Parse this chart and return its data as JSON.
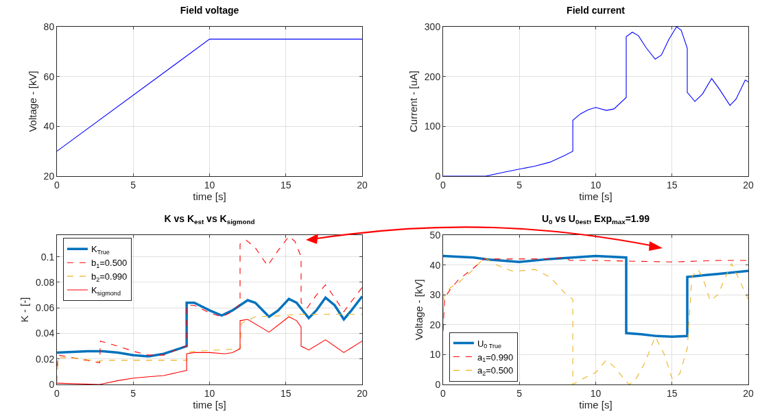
{
  "chart_data": [
    {
      "type": "line",
      "title": "Field voltage",
      "xlabel": "time [s]",
      "ylabel": "Voltage - [kV]",
      "xlim": [
        0,
        20
      ],
      "xticks": [
        0,
        5,
        10,
        15,
        20
      ],
      "ylim": [
        20,
        80
      ],
      "yticks": [
        20,
        40,
        60,
        80
      ],
      "grid": true,
      "legend": false,
      "series": [
        {
          "color": "#0000ff",
          "line_style": "solid",
          "x": [
            0,
            10,
            20
          ],
          "values": [
            30,
            75,
            75
          ]
        }
      ]
    },
    {
      "type": "line",
      "title": "Field current",
      "xlabel": "time [s]",
      "ylabel": "Current - [uA]",
      "xlim": [
        0,
        20
      ],
      "xticks": [
        0,
        5,
        10,
        15,
        20
      ],
      "ylim": [
        0,
        300
      ],
      "yticks": [
        0,
        100,
        200,
        300
      ],
      "grid": true,
      "legend": false,
      "series": [
        {
          "color": "#0000ff",
          "line_style": "solid",
          "x": [
            0,
            2.8,
            4,
            5,
            6,
            7,
            8,
            8.5,
            8.5,
            9,
            9.5,
            10,
            10.7,
            11.2,
            12,
            12,
            12.4,
            12.8,
            13.3,
            13.9,
            14.3,
            14.8,
            15.3,
            15.6,
            16,
            16,
            16.5,
            17,
            17.6,
            18.1,
            18.8,
            19.2,
            19.8,
            20
          ],
          "values": [
            0,
            0,
            8,
            14,
            20,
            28,
            42,
            50,
            112,
            125,
            133,
            138,
            132,
            135,
            158,
            280,
            289,
            282,
            258,
            235,
            243,
            275,
            300,
            293,
            257,
            168,
            150,
            165,
            196,
            175,
            142,
            155,
            193,
            189
          ]
        }
      ]
    },
    {
      "type": "line",
      "title": "K vs K$_{est}$ vs K$_{sigmond}$",
      "xlabel": "time [s]",
      "ylabel": "K - [-]",
      "xlim": [
        0,
        20
      ],
      "xticks": [
        0,
        5,
        10,
        15,
        20
      ],
      "ylim": [
        0,
        0.117
      ],
      "yticks": [
        0,
        0.02,
        0.04,
        0.06,
        0.08,
        0.1
      ],
      "grid": true,
      "legend": "top left",
      "series": [
        {
          "name": "K$_{True}$",
          "color": "#0072bd",
          "line_style": "solid",
          "x": [
            0,
            2,
            3,
            4,
            5,
            6,
            7,
            8,
            8.5,
            8.5,
            9,
            10,
            10.8,
            11.5,
            12.5,
            13,
            13.9,
            14.5,
            15.2,
            15.7,
            16.5,
            17,
            17.6,
            18.2,
            18.8,
            19.3,
            20
          ],
          "values": [
            0.025,
            0.026,
            0.026,
            0.025,
            0.023,
            0.022,
            0.024,
            0.028,
            0.03,
            0.064,
            0.064,
            0.058,
            0.054,
            0.058,
            0.066,
            0.064,
            0.053,
            0.058,
            0.067,
            0.064,
            0.052,
            0.058,
            0.068,
            0.062,
            0.051,
            0.058,
            0.069
          ]
        },
        {
          "name": "b$_{1}$=0.500",
          "color": "#ff0000",
          "line_style": "dashed",
          "x": [
            0,
            0.1,
            1,
            2.8,
            2.85,
            4,
            5,
            6,
            7,
            8,
            8.5,
            8.5,
            9,
            10,
            10.8,
            11.5,
            12,
            12,
            12.4,
            13,
            13.8,
            14.5,
            15.2,
            15.6,
            16,
            16,
            16.4,
            17,
            17.6,
            18.2,
            18.8,
            19.3,
            20
          ],
          "values": [
            0.014,
            0.023,
            0.021,
            0.017,
            0.034,
            0.03,
            0.026,
            0.023,
            0.023,
            0.028,
            0.03,
            0.062,
            0.062,
            0.056,
            0.053,
            0.057,
            0.063,
            0.11,
            0.113,
            0.107,
            0.093,
            0.105,
            0.116,
            0.112,
            0.1,
            0.064,
            0.06,
            0.07,
            0.078,
            0.068,
            0.057,
            0.065,
            0.076
          ]
        },
        {
          "name": "b$_{2}$=0.990",
          "color": "#edb120",
          "line_style": "dashed",
          "x": [
            0,
            0.05,
            0.2,
            1,
            2.8,
            3,
            8.5,
            8.6,
            9,
            12,
            12.1,
            13,
            15,
            15.8,
            20
          ],
          "values": [
            0.002,
            0.014,
            0.021,
            0.021,
            0.018,
            0.019,
            0.019,
            0.025,
            0.026,
            0.028,
            0.048,
            0.053,
            0.054,
            0.055,
            0.055
          ]
        },
        {
          "name": "K$_{sigmond}$",
          "color": "#ff0000",
          "line_style": "solid",
          "x": [
            0,
            2.8,
            4,
            5,
            6,
            7,
            8.5,
            8.5,
            9,
            10,
            11,
            11.5,
            12,
            12,
            12.5,
            13.9,
            15.2,
            15.7,
            16,
            16,
            16.5,
            17.6,
            18.8,
            20
          ],
          "values": [
            0.001,
            0,
            0.003,
            0.005,
            0.006,
            0.007,
            0.011,
            0.024,
            0.025,
            0.025,
            0.024,
            0.025,
            0.028,
            0.05,
            0.051,
            0.041,
            0.053,
            0.05,
            0.045,
            0.03,
            0.027,
            0.035,
            0.025,
            0.034
          ]
        }
      ]
    },
    {
      "type": "line",
      "title": "U$_{0}$ vs U$_{0est}$, Exp$_{max}$=1.99",
      "xlabel": "time [s]",
      "ylabel": "Voltage - [kV]",
      "xlim": [
        0,
        20
      ],
      "xticks": [
        0,
        5,
        10,
        15,
        20
      ],
      "ylim": [
        0,
        50
      ],
      "yticks": [
        0,
        10,
        20,
        30,
        40,
        50
      ],
      "grid": true,
      "legend": "bottom left",
      "series": [
        {
          "name": "U$_{0 True}$",
          "color": "#0072bd",
          "line_style": "solid",
          "x": [
            0,
            2,
            3,
            5,
            7,
            10,
            12,
            12,
            13,
            14,
            15,
            16,
            16,
            17,
            18,
            20
          ],
          "values": [
            43,
            42.5,
            41.8,
            41,
            42,
            43,
            42.5,
            17.2,
            16.8,
            16.2,
            16,
            16.2,
            36,
            36.5,
            37,
            38
          ]
        },
        {
          "name": "a$_{1}$=0.990",
          "color": "#ff0000",
          "line_style": "dashed",
          "x": [
            0,
            0.1,
            0.5,
            1,
            2,
            2.7,
            3,
            7,
            8,
            8.3,
            10,
            12,
            15,
            18,
            20
          ],
          "values": [
            18,
            29,
            32,
            35,
            39,
            42,
            42,
            42,
            42.5,
            41.5,
            41.5,
            41.3,
            41,
            41.5,
            41.5
          ]
        },
        {
          "name": "a$_{2}$=0.500",
          "color": "#edb120",
          "line_style": "dashed",
          "x": [
            0,
            0.05,
            0.5,
            1,
            2,
            2.7,
            3.5,
            4.5,
            5,
            6,
            7,
            8,
            8.5,
            8.5,
            9,
            10,
            10.7,
            11.2,
            12,
            12.2,
            12.6,
            13.2,
            13.9,
            14.5,
            15,
            15.5,
            16,
            16.3,
            16.7,
            17,
            17.5,
            18,
            18.9,
            19.5,
            20
          ],
          "values": [
            20,
            30,
            32.5,
            34,
            38.5,
            42.5,
            40,
            38,
            38,
            38.5,
            36,
            30.5,
            28.5,
            0,
            1.5,
            4,
            8.2,
            6,
            1,
            0,
            1.5,
            7,
            16,
            10,
            2,
            3.5,
            12,
            36,
            38.5,
            36,
            28,
            30,
            40.5,
            34,
            28.5
          ]
        }
      ]
    }
  ]
}
